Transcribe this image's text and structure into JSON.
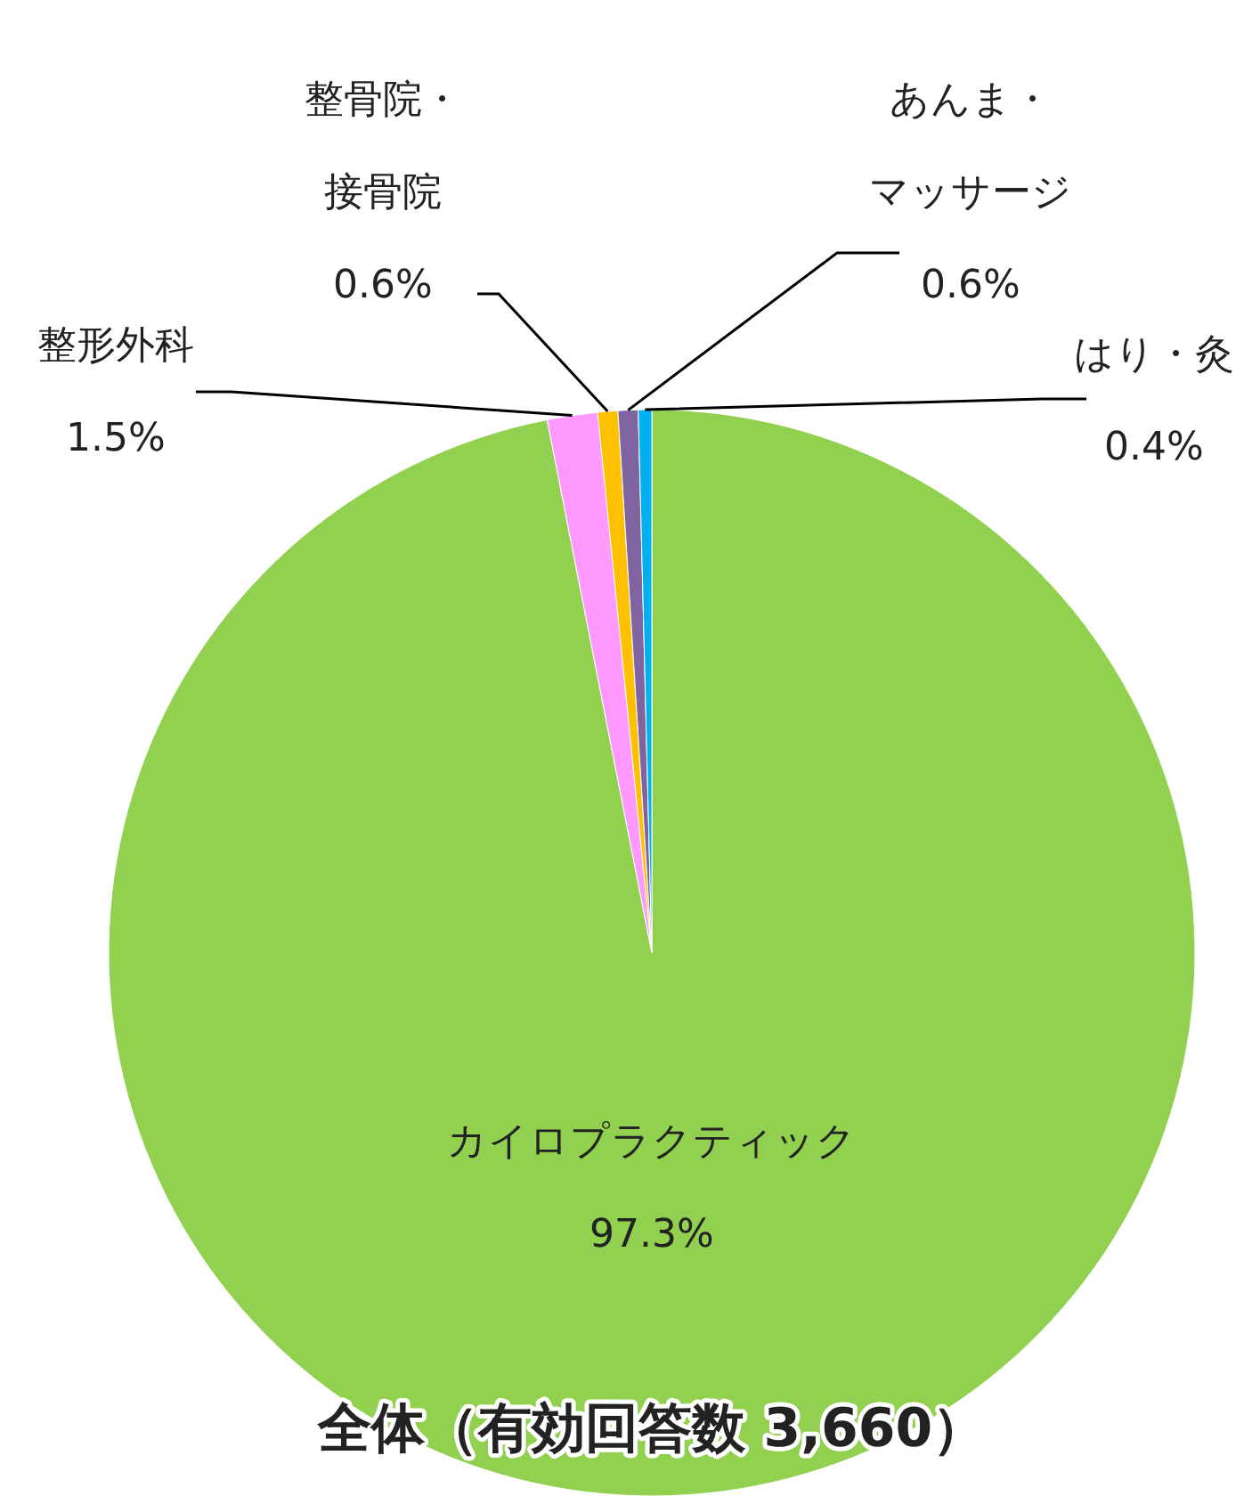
{
  "chart_data": {
    "type": "pie",
    "title": "全体（有効回答数 3,660）",
    "categories": [
      "カイロプラクティック",
      "整形外科",
      "整骨院・接骨院",
      "あんま・マッサージ",
      "はり・灸"
    ],
    "values": [
      97.3,
      1.5,
      0.6,
      0.6,
      0.4
    ],
    "value_labels": [
      "97.3%",
      "1.5%",
      "0.6%",
      "0.6%",
      "0.4%"
    ],
    "colors": [
      "#92d050",
      "#ff99ff",
      "#ffc000",
      "#8064a2",
      "#00b0f0"
    ]
  }
}
